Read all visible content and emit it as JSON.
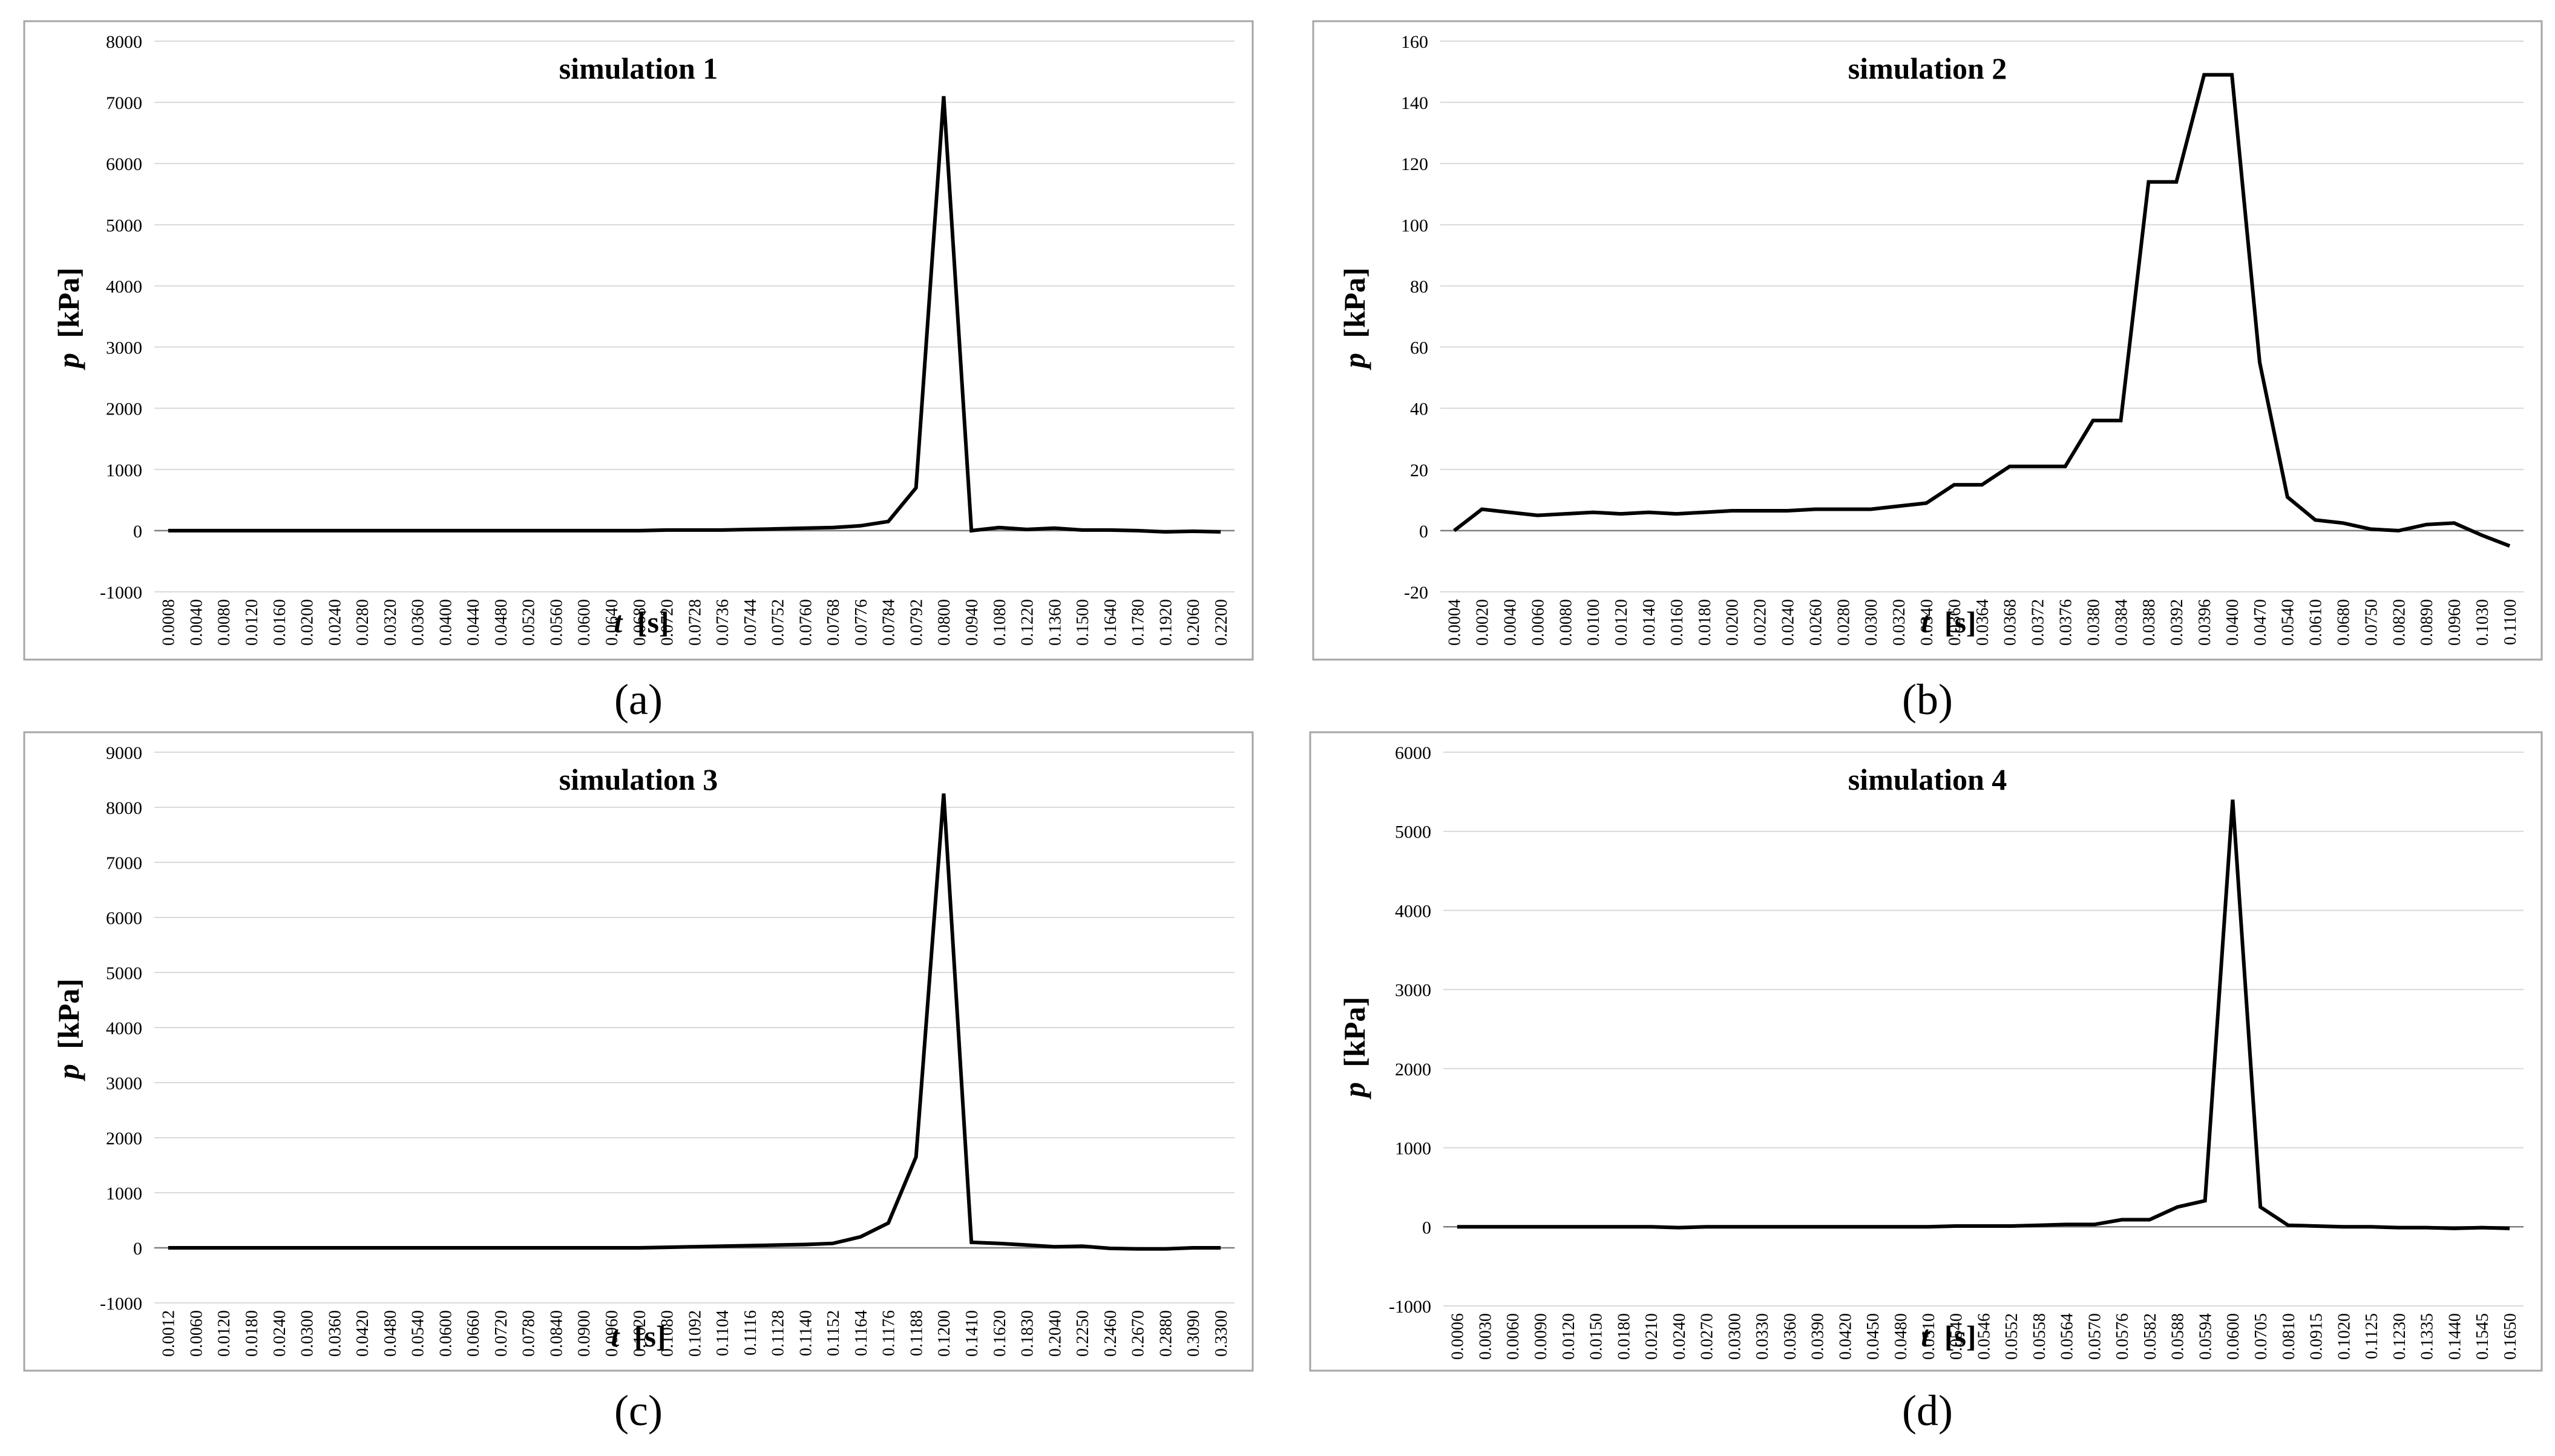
{
  "figure": {
    "captions": [
      "(a)",
      "(b)",
      "(c)",
      "(d)"
    ]
  },
  "chart_data": [
    {
      "type": "line",
      "title": "simulation 1",
      "xlabel_var": "t",
      "xlabel_unit": "[s]",
      "ylabel_var": "p",
      "ylabel_unit": "[kPa]",
      "ylim": [
        -1000,
        8000
      ],
      "ytick_step": 1000,
      "grid": true,
      "x": [
        "0.0008",
        "0.0040",
        "0.0080",
        "0.0120",
        "0.0160",
        "0.0200",
        "0.0240",
        "0.0280",
        "0.0320",
        "0.0360",
        "0.0400",
        "0.0440",
        "0.0480",
        "0.0520",
        "0.0560",
        "0.0600",
        "0.0640",
        "0.0680",
        "0.0720",
        "0.0728",
        "0.0736",
        "0.0744",
        "0.0752",
        "0.0760",
        "0.0768",
        "0.0776",
        "0.0784",
        "0.0792",
        "0.0800",
        "0.0940",
        "0.1080",
        "0.1220",
        "0.1360",
        "0.1500",
        "0.1640",
        "0.1780",
        "0.1920",
        "0.2060",
        "0.2200"
      ],
      "series": [
        {
          "values": [
            0,
            0,
            0,
            0,
            0,
            0,
            0,
            0,
            0,
            0,
            0,
            0,
            0,
            0,
            0,
            0,
            0,
            0,
            10,
            10,
            10,
            20,
            30,
            40,
            50,
            80,
            150,
            700,
            7100,
            0,
            50,
            20,
            40,
            10,
            10,
            0,
            -20,
            -10,
            -20
          ]
        }
      ],
      "line_color": "#000000"
    },
    {
      "type": "line",
      "title": "simulation 2",
      "xlabel_var": "t",
      "xlabel_unit": "[s]",
      "ylabel_var": "p",
      "ylabel_unit": "[kPa]",
      "ylim": [
        -20,
        160
      ],
      "ytick_step": 20,
      "grid": true,
      "x": [
        "0.0004",
        "0.0020",
        "0.0040",
        "0.0060",
        "0.0080",
        "0.0100",
        "0.0120",
        "0.0140",
        "0.0160",
        "0.0180",
        "0.0200",
        "0.0220",
        "0.0240",
        "0.0260",
        "0.0280",
        "0.0300",
        "0.0320",
        "0.0340",
        "0.0360",
        "0.0364",
        "0.0368",
        "0.0372",
        "0.0376",
        "0.0380",
        "0.0384",
        "0.0388",
        "0.0392",
        "0.0396",
        "0.0400",
        "0.0470",
        "0.0540",
        "0.0610",
        "0.0680",
        "0.0750",
        "0.0820",
        "0.0890",
        "0.0960",
        "0.1030",
        "0.1100"
      ],
      "series": [
        {
          "values": [
            0,
            7,
            6,
            5,
            5.5,
            6,
            5.5,
            6,
            5.5,
            6,
            6.5,
            6.5,
            6.5,
            7,
            7,
            7,
            8,
            9,
            15,
            15,
            21,
            21,
            21,
            36,
            36,
            114,
            114,
            149,
            149,
            55,
            11,
            3.5,
            2.5,
            0.5,
            0,
            2,
            2.5,
            -1.5,
            -5
          ]
        }
      ],
      "line_color": "#000000"
    },
    {
      "type": "line",
      "title": "simulation 3",
      "xlabel_var": "t",
      "xlabel_unit": "[s]",
      "ylabel_var": "p",
      "ylabel_unit": "[kPa]",
      "ylim": [
        -1000,
        9000
      ],
      "ytick_step": 1000,
      "grid": true,
      "x": [
        "0.0012",
        "0.0060",
        "0.0120",
        "0.0180",
        "0.0240",
        "0.0300",
        "0.0360",
        "0.0420",
        "0.0480",
        "0.0540",
        "0.0600",
        "0.0660",
        "0.0720",
        "0.0780",
        "0.0840",
        "0.0900",
        "0.0960",
        "0.1020",
        "0.1080",
        "0.1092",
        "0.1104",
        "0.1116",
        "0.1128",
        "0.1140",
        "0.1152",
        "0.1164",
        "0.1176",
        "0.1188",
        "0.1200",
        "0.1410",
        "0.1620",
        "0.1830",
        "0.2040",
        "0.2250",
        "0.2460",
        "0.2670",
        "0.2880",
        "0.3090",
        "0.3300"
      ],
      "series": [
        {
          "values": [
            0,
            0,
            0,
            0,
            0,
            0,
            0,
            0,
            0,
            0,
            0,
            0,
            0,
            0,
            0,
            0,
            0,
            0,
            10,
            20,
            30,
            40,
            50,
            60,
            80,
            200,
            450,
            1650,
            8250,
            100,
            80,
            50,
            20,
            30,
            -10,
            -20,
            -20,
            0,
            0
          ]
        }
      ],
      "line_color": "#000000"
    },
    {
      "type": "line",
      "title": "simulation 4",
      "xlabel_var": "t",
      "xlabel_unit": "[s]",
      "ylabel_var": "p",
      "ylabel_unit": "[kPa]",
      "ylim": [
        -1000,
        6000
      ],
      "ytick_step": 1000,
      "grid": true,
      "x": [
        "0.0006",
        "0.0030",
        "0.0060",
        "0.0090",
        "0.0120",
        "0.0150",
        "0.0180",
        "0.0210",
        "0.0240",
        "0.0270",
        "0.0300",
        "0.0330",
        "0.0360",
        "0.0390",
        "0.0420",
        "0.0450",
        "0.0480",
        "0.0510",
        "0.0540",
        "0.0546",
        "0.0552",
        "0.0558",
        "0.0564",
        "0.0570",
        "0.0576",
        "0.0582",
        "0.0588",
        "0.0594",
        "0.0600",
        "0.0705",
        "0.0810",
        "0.0915",
        "0.1020",
        "0.1125",
        "0.1230",
        "0.1335",
        "0.1440",
        "0.1545",
        "0.1650"
      ],
      "series": [
        {
          "values": [
            0,
            0,
            0,
            0,
            0,
            0,
            0,
            0,
            -10,
            0,
            0,
            0,
            0,
            0,
            0,
            0,
            0,
            0,
            10,
            10,
            10,
            20,
            30,
            30,
            90,
            90,
            250,
            330,
            5400,
            250,
            20,
            10,
            0,
            0,
            -10,
            -10,
            -20,
            -10,
            -20
          ]
        }
      ],
      "line_color": "#000000"
    }
  ]
}
